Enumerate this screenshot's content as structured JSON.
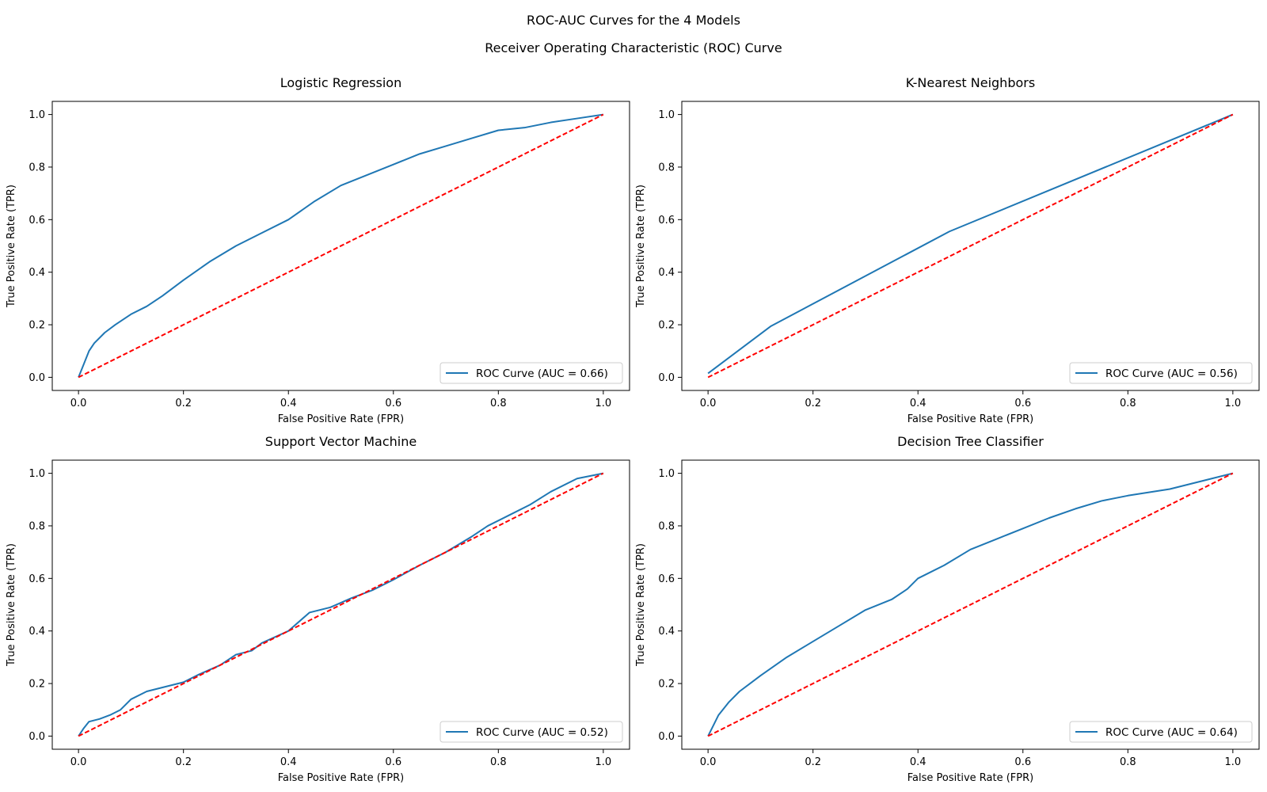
{
  "figure": {
    "title": "ROC-AUC Curves for the 4 Models",
    "subtitle": "Receiver Operating Characteristic (ROC) Curve"
  },
  "colors": {
    "roc": "#1f77b4",
    "diagonal": "#ff0000"
  },
  "chart_data": [
    {
      "type": "line",
      "title": "Logistic Regression",
      "xlabel": "False Positive Rate (FPR)",
      "ylabel": "True Positive Rate (TPR)",
      "xlim": [
        -0.05,
        1.05
      ],
      "ylim": [
        -0.05,
        1.05
      ],
      "xticks": [
        0.0,
        0.2,
        0.4,
        0.6,
        0.8,
        1.0
      ],
      "yticks": [
        0.0,
        0.2,
        0.4,
        0.6,
        0.8,
        1.0
      ],
      "grid": false,
      "legend_position": "lower-right",
      "series": [
        {
          "name": "ROC Curve (AUC = 0.66)",
          "style": "solid",
          "x": [
            0,
            0.01,
            0.02,
            0.03,
            0.05,
            0.07,
            0.1,
            0.13,
            0.16,
            0.2,
            0.25,
            0.3,
            0.35,
            0.4,
            0.45,
            0.5,
            0.55,
            0.6,
            0.65,
            0.7,
            0.75,
            0.8,
            0.85,
            0.9,
            0.95,
            1.0
          ],
          "y": [
            0,
            0.05,
            0.1,
            0.13,
            0.17,
            0.2,
            0.24,
            0.27,
            0.31,
            0.37,
            0.44,
            0.5,
            0.55,
            0.6,
            0.67,
            0.73,
            0.77,
            0.81,
            0.85,
            0.88,
            0.91,
            0.94,
            0.95,
            0.97,
            0.985,
            1.0
          ]
        },
        {
          "name": "",
          "style": "dashed",
          "x": [
            0,
            1
          ],
          "y": [
            0,
            1
          ]
        }
      ]
    },
    {
      "type": "line",
      "title": "K-Nearest Neighbors",
      "xlabel": "False Positive Rate (FPR)",
      "ylabel": "True Positive Rate (TPR)",
      "xlim": [
        -0.05,
        1.05
      ],
      "ylim": [
        -0.05,
        1.05
      ],
      "xticks": [
        0.0,
        0.2,
        0.4,
        0.6,
        0.8,
        1.0
      ],
      "yticks": [
        0.0,
        0.2,
        0.4,
        0.6,
        0.8,
        1.0
      ],
      "grid": false,
      "legend_position": "lower-right",
      "series": [
        {
          "name": "ROC Curve (AUC = 0.56)",
          "style": "solid",
          "x": [
            0,
            0.12,
            0.46,
            1.0
          ],
          "y": [
            0.015,
            0.195,
            0.555,
            1.0
          ]
        },
        {
          "name": "",
          "style": "dashed",
          "x": [
            0,
            1
          ],
          "y": [
            0,
            1
          ]
        }
      ]
    },
    {
      "type": "line",
      "title": "Support Vector Machine",
      "xlabel": "False Positive Rate (FPR)",
      "ylabel": "True Positive Rate (TPR)",
      "xlim": [
        -0.05,
        1.05
      ],
      "ylim": [
        -0.05,
        1.05
      ],
      "xticks": [
        0.0,
        0.2,
        0.4,
        0.6,
        0.8,
        1.0
      ],
      "yticks": [
        0.0,
        0.2,
        0.4,
        0.6,
        0.8,
        1.0
      ],
      "grid": false,
      "legend_position": "lower-right",
      "series": [
        {
          "name": "ROC Curve (AUC = 0.52)",
          "style": "solid",
          "x": [
            0,
            0.01,
            0.02,
            0.04,
            0.06,
            0.08,
            0.1,
            0.13,
            0.16,
            0.2,
            0.23,
            0.27,
            0.3,
            0.33,
            0.35,
            0.4,
            0.44,
            0.48,
            0.52,
            0.56,
            0.6,
            0.65,
            0.7,
            0.75,
            0.78,
            0.82,
            0.86,
            0.9,
            0.95,
            1.0
          ],
          "y": [
            0,
            0.03,
            0.055,
            0.065,
            0.08,
            0.1,
            0.14,
            0.17,
            0.185,
            0.205,
            0.235,
            0.27,
            0.31,
            0.325,
            0.355,
            0.4,
            0.47,
            0.49,
            0.525,
            0.555,
            0.595,
            0.65,
            0.7,
            0.76,
            0.8,
            0.84,
            0.88,
            0.93,
            0.98,
            1.0
          ]
        },
        {
          "name": "",
          "style": "dashed",
          "x": [
            0,
            1
          ],
          "y": [
            0,
            1
          ]
        }
      ]
    },
    {
      "type": "line",
      "title": "Decision Tree Classifier",
      "xlabel": "False Positive Rate (FPR)",
      "ylabel": "True Positive Rate (TPR)",
      "xlim": [
        -0.05,
        1.05
      ],
      "ylim": [
        -0.05,
        1.05
      ],
      "xticks": [
        0.0,
        0.2,
        0.4,
        0.6,
        0.8,
        1.0
      ],
      "yticks": [
        0.0,
        0.2,
        0.4,
        0.6,
        0.8,
        1.0
      ],
      "grid": false,
      "legend_position": "lower-right",
      "series": [
        {
          "name": "ROC Curve (AUC = 0.64)",
          "style": "solid",
          "x": [
            0,
            0.01,
            0.02,
            0.04,
            0.06,
            0.08,
            0.1,
            0.15,
            0.2,
            0.25,
            0.3,
            0.35,
            0.38,
            0.4,
            0.42,
            0.45,
            0.5,
            0.55,
            0.6,
            0.65,
            0.7,
            0.75,
            0.8,
            0.88,
            1.0
          ],
          "y": [
            0,
            0.04,
            0.08,
            0.13,
            0.17,
            0.2,
            0.23,
            0.3,
            0.36,
            0.42,
            0.48,
            0.52,
            0.56,
            0.6,
            0.62,
            0.65,
            0.71,
            0.75,
            0.79,
            0.83,
            0.865,
            0.895,
            0.915,
            0.94,
            1.0
          ]
        },
        {
          "name": "",
          "style": "dashed",
          "x": [
            0,
            1
          ],
          "y": [
            0,
            1
          ]
        }
      ]
    }
  ]
}
